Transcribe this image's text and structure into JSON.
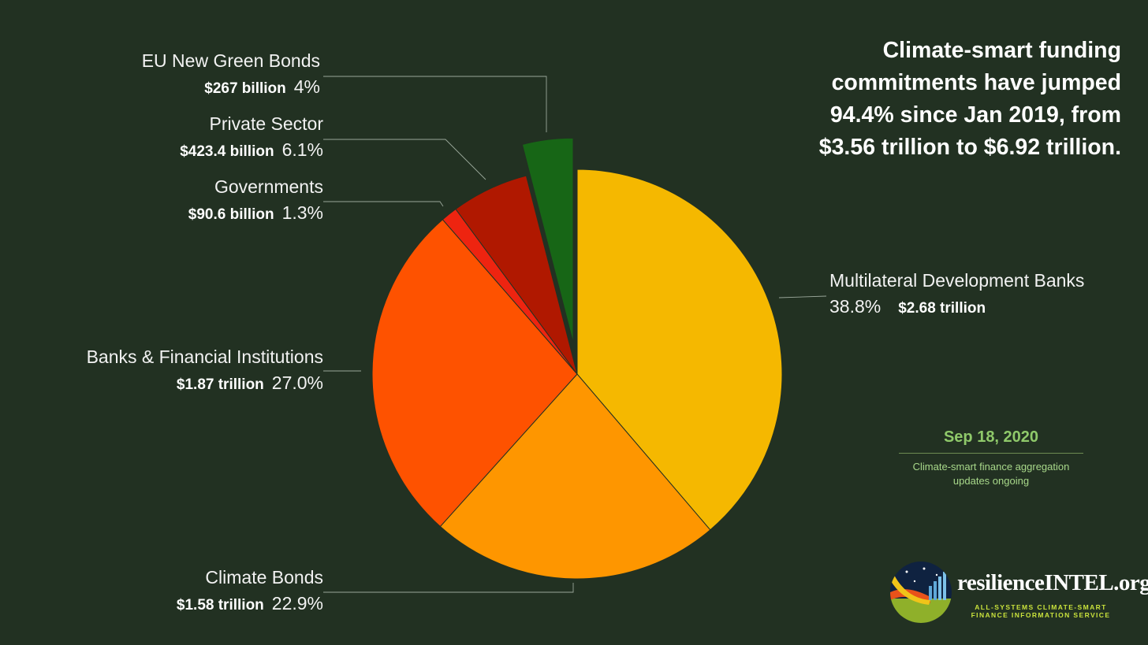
{
  "headline": {
    "line1": "Climate-smart funding",
    "line2": "commitments have jumped",
    "line3": "94.4% since Jan 2019, from",
    "line4": "$3.56 trillion to $6.92 trillion."
  },
  "date_box": {
    "date": "Sep 18, 2020",
    "note_line1": "Climate-smart finance aggregation",
    "note_line2": "updates ongoing"
  },
  "branding": {
    "name": "resilienceINTEL.org",
    "tagline_line1": "ALL-SYSTEMS CLIMATE-SMART",
    "tagline_line2": "FINANCE INFORMATION SERVICE"
  },
  "chart_data": {
    "type": "pie",
    "title": "",
    "start": "12 o'clock, clockwise",
    "exploded": "EU New Green Bonds",
    "slices": [
      {
        "label": "Multilateral Development Banks",
        "amount": "$2.68 trillion",
        "percent_label": "38.8%",
        "value": 38.8,
        "color": "#F5B800"
      },
      {
        "label": "Climate Bonds",
        "amount": "$1.58 trillion",
        "percent_label": "22.9%",
        "value": 22.9,
        "color": "#FE9600"
      },
      {
        "label": "Banks & Financial Institutions",
        "amount": "$1.87 trillion",
        "percent_label": "27.0%",
        "value": 27.0,
        "color": "#FE5200"
      },
      {
        "label": "Governments",
        "amount": "$90.6 billion",
        "percent_label": "1.3%",
        "value": 1.3,
        "color": "#EE2410"
      },
      {
        "label": "Private Sector",
        "amount": "$423.4 billion",
        "percent_label": "6.1%",
        "value": 6.1,
        "color": "#B01800"
      },
      {
        "label": "EU New Green Bonds",
        "amount": "$267 billion",
        "percent_label": "4%",
        "value": 4.0,
        "color": "#176616"
      }
    ]
  }
}
